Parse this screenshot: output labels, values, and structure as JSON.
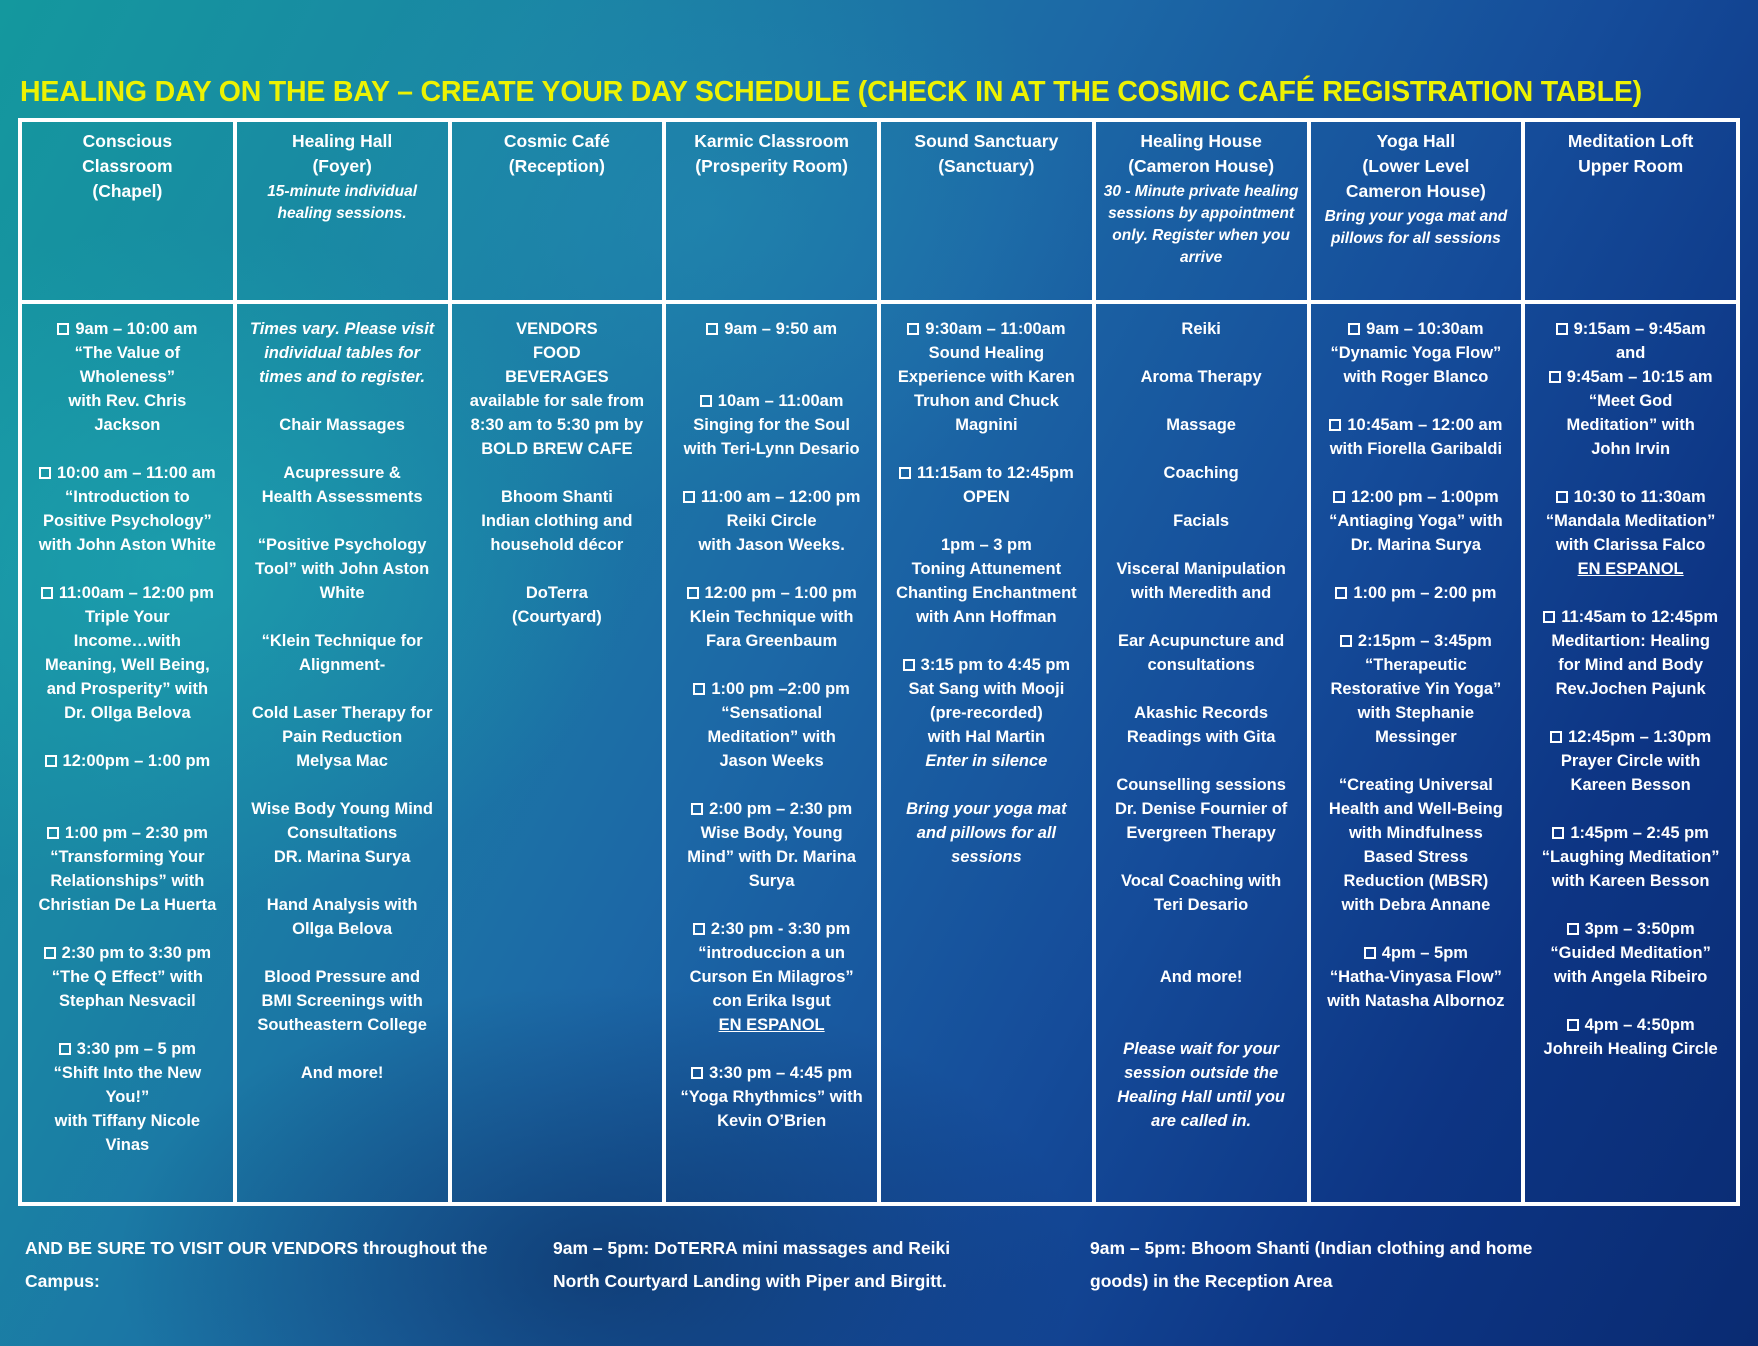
{
  "title": "HEALING DAY ON THE BAY – CREATE YOUR DAY SCHEDULE (CHECK IN AT THE COSMIC CAFÉ REGISTRATION TABLE)",
  "colors": {
    "title_yellow": "#edf202",
    "text": "#ffffff",
    "grid": "#ffffff",
    "bg_teal": "#14989e",
    "bg_navy": "#0a2b72"
  },
  "checkbox_glyph": "empty-square",
  "columns": [
    {
      "header": [
        "Conscious",
        "Classroom",
        "(Chapel)"
      ],
      "note": null,
      "events": [
        {
          "lines": [
            {
              "cb": true,
              "t": "9am – 10:00 am"
            },
            {
              "t": "“The Value of"
            },
            {
              "t": "Wholeness”"
            },
            {
              "t": "with Rev. Chris"
            },
            {
              "t": "Jackson"
            }
          ]
        },
        {
          "lines": [
            {
              "cb": true,
              "t": "10:00 am – 11:00 am"
            },
            {
              "t": "“Introduction to"
            },
            {
              "t": "Positive Psychology”"
            },
            {
              "t": "with John Aston White"
            }
          ]
        },
        {
          "lines": [
            {
              "cb": true,
              "t": "11:00am – 12:00 pm"
            },
            {
              "t": "Triple Your"
            },
            {
              "t": "Income…with"
            },
            {
              "t": "Meaning, Well Being,"
            },
            {
              "t": "and Prosperity” with"
            },
            {
              "t": "Dr. Ollga Belova"
            }
          ]
        },
        {
          "gap": 2,
          "lines": [
            {
              "cb": true,
              "t": "12:00pm – 1:00 pm"
            }
          ]
        },
        {
          "lines": [
            {
              "cb": true,
              "t": "1:00 pm – 2:30 pm"
            },
            {
              "t": "“Transforming Your"
            },
            {
              "t": "Relationships” with"
            },
            {
              "t": "Christian De La Huerta"
            }
          ]
        },
        {
          "lines": [
            {
              "cb": true,
              "t": "2:30 pm to 3:30 pm"
            },
            {
              "t": "“The Q Effect” with"
            },
            {
              "t": "Stephan Nesvacil"
            }
          ]
        },
        {
          "lines": [
            {
              "cb": true,
              "t": "3:30 pm – 5 pm"
            },
            {
              "t": "“Shift Into the New"
            },
            {
              "t": "You!”"
            },
            {
              "t": "with Tiffany Nicole"
            },
            {
              "t": "Vinas"
            }
          ]
        }
      ]
    },
    {
      "header": [
        "Healing Hall",
        "(Foyer)"
      ],
      "note": "15-minute individual healing sessions.",
      "events": [
        {
          "lines": [
            {
              "t": "Times vary. Please visit",
              "em": true
            },
            {
              "t": "individual tables for",
              "em": true
            },
            {
              "t": "times and to register.",
              "em": true
            }
          ]
        },
        {
          "lines": [
            {
              "t": "Chair Massages"
            }
          ]
        },
        {
          "lines": [
            {
              "t": "Acupressure &"
            },
            {
              "t": "Health Assessments"
            }
          ]
        },
        {
          "lines": [
            {
              "t": "“Positive Psychology"
            },
            {
              "t": "Tool” with John Aston"
            },
            {
              "t": "White"
            }
          ]
        },
        {
          "lines": [
            {
              "t": "“Klein Technique for"
            },
            {
              "t": "Alignment-"
            }
          ]
        },
        {
          "lines": [
            {
              "t": "Cold Laser Therapy for"
            },
            {
              "t": "Pain Reduction"
            },
            {
              "t": "Melysa Mac"
            }
          ]
        },
        {
          "lines": [
            {
              "t": "Wise Body Young Mind"
            },
            {
              "t": "Consultations"
            },
            {
              "t": "DR. Marina Surya"
            }
          ]
        },
        {
          "lines": [
            {
              "t": "Hand Analysis with"
            },
            {
              "t": "Ollga Belova"
            }
          ]
        },
        {
          "lines": [
            {
              "t": "Blood Pressure and"
            },
            {
              "t": "BMI Screenings with"
            },
            {
              "t": "Southeastern College"
            }
          ]
        },
        {
          "lines": [
            {
              "t": "And more!"
            }
          ]
        }
      ]
    },
    {
      "header": [
        "Cosmic Café",
        "(Reception)"
      ],
      "note": null,
      "events": [
        {
          "lines": [
            {
              "t": "VENDORS"
            },
            {
              "t": "FOOD"
            },
            {
              "t": "BEVERAGES"
            },
            {
              "t": "available for sale from"
            },
            {
              "t": "8:30 am to 5:30 pm by"
            },
            {
              "t": "BOLD BREW CAFE"
            }
          ]
        },
        {
          "lines": [
            {
              "t": "Bhoom Shanti"
            },
            {
              "t": "Indian clothing and"
            },
            {
              "t": "household décor"
            }
          ]
        },
        {
          "lines": [
            {
              "t": "DoTerra"
            },
            {
              "t": "(Courtyard)"
            }
          ]
        }
      ]
    },
    {
      "header": [
        "Karmic Classroom",
        "(Prosperity Room)"
      ],
      "note": null,
      "events": [
        {
          "gap": 2,
          "lines": [
            {
              "cb": true,
              "t": "9am – 9:50 am"
            }
          ]
        },
        {
          "lines": [
            {
              "cb": true,
              "t": "10am – 11:00am"
            },
            {
              "t": "Singing for the Soul"
            },
            {
              "t": "with Teri-Lynn Desario"
            }
          ]
        },
        {
          "lines": [
            {
              "cb": true,
              "t": "11:00 am – 12:00 pm"
            },
            {
              "t": "Reiki Circle"
            },
            {
              "t": "with Jason Weeks."
            }
          ]
        },
        {
          "lines": [
            {
              "cb": true,
              "t": "12:00 pm – 1:00 pm"
            },
            {
              "t": "Klein Technique with"
            },
            {
              "t": "Fara Greenbaum"
            }
          ]
        },
        {
          "lines": [
            {
              "cb": true,
              "t": "1:00 pm –2:00 pm"
            },
            {
              "t": "“Sensational"
            },
            {
              "t": "Meditation” with"
            },
            {
              "t": "Jason Weeks"
            }
          ]
        },
        {
          "lines": [
            {
              "cb": true,
              "t": "2:00 pm – 2:30 pm"
            },
            {
              "t": "Wise Body, Young"
            },
            {
              "t": "Mind” with Dr. Marina"
            },
            {
              "t": "Surya"
            }
          ]
        },
        {
          "lines": [
            {
              "cb": true,
              "t": "2:30 pm - 3:30 pm"
            },
            {
              "t": "“introduccion a un"
            },
            {
              "t": "Curson En Milagros”"
            },
            {
              "t": "con Erika Isgut"
            },
            {
              "t": "EN ESPANOL",
              "u": true
            }
          ]
        },
        {
          "lines": [
            {
              "cb": true,
              "t": "3:30 pm – 4:45 pm"
            },
            {
              "t": "“Yoga Rhythmics” with"
            },
            {
              "t": "Kevin O’Brien"
            }
          ]
        }
      ]
    },
    {
      "header": [
        "Sound Sanctuary",
        "(Sanctuary)"
      ],
      "note": null,
      "events": [
        {
          "lines": [
            {
              "cb": true,
              "t": "9:30am – 11:00am"
            },
            {
              "t": "Sound Healing"
            },
            {
              "t": "Experience with Karen"
            },
            {
              "t": "Truhon and Chuck"
            },
            {
              "t": "Magnini"
            }
          ]
        },
        {
          "lines": [
            {
              "cb": true,
              "t": "11:15am to 12:45pm"
            },
            {
              "t": "OPEN"
            }
          ]
        },
        {
          "lines": [
            {
              "t": "1pm – 3 pm"
            },
            {
              "t": "Toning Attunement"
            },
            {
              "t": "Chanting Enchantment"
            },
            {
              "t": "with Ann Hoffman"
            }
          ]
        },
        {
          "lines": [
            {
              "cb": true,
              "t": "3:15 pm to 4:45 pm"
            },
            {
              "t": "Sat Sang with Mooji"
            },
            {
              "t": "(pre-recorded)"
            },
            {
              "t": "with Hal Martin"
            },
            {
              "t": "Enter in silence",
              "em": true
            }
          ]
        },
        {
          "lines": [
            {
              "t": "Bring your yoga mat",
              "em": true
            },
            {
              "t": "and pillows for all",
              "em": true
            },
            {
              "t": "sessions",
              "em": true
            }
          ]
        }
      ]
    },
    {
      "header": [
        "Healing House",
        "(Cameron House)"
      ],
      "note": "30 - Minute private healing sessions by appointment only. Register when you arrive",
      "events": [
        {
          "lines": [
            {
              "t": "Reiki"
            }
          ]
        },
        {
          "lines": [
            {
              "t": "Aroma Therapy"
            }
          ]
        },
        {
          "lines": [
            {
              "t": "Massage"
            }
          ]
        },
        {
          "lines": [
            {
              "t": "Coaching"
            }
          ]
        },
        {
          "lines": [
            {
              "t": "Facials"
            }
          ]
        },
        {
          "lines": [
            {
              "t": "Visceral Manipulation"
            },
            {
              "t": "with Meredith and"
            }
          ]
        },
        {
          "lines": [
            {
              "t": "Ear Acupuncture and"
            },
            {
              "t": "consultations"
            }
          ]
        },
        {
          "lines": [
            {
              "t": "Akashic Records"
            },
            {
              "t": "Readings with Gita"
            }
          ]
        },
        {
          "lines": [
            {
              "t": "Counselling sessions"
            },
            {
              "t": "Dr. Denise Fournier of"
            },
            {
              "t": "Evergreen Therapy"
            }
          ]
        },
        {
          "gap": 2,
          "lines": [
            {
              "t": "Vocal Coaching with"
            },
            {
              "t": "Teri Desario"
            }
          ]
        },
        {
          "gap": 2,
          "lines": [
            {
              "t": "And more!"
            }
          ]
        },
        {
          "lines": [
            {
              "t": "Please wait for your",
              "em": true
            },
            {
              "t": "session outside the",
              "em": true
            },
            {
              "t": "Healing Hall until you",
              "em": true
            },
            {
              "t": "are called in.",
              "em": true
            }
          ]
        }
      ]
    },
    {
      "header": [
        "Yoga Hall",
        "(Lower Level",
        "Cameron House)"
      ],
      "note": "Bring your yoga mat and pillows for all sessions",
      "events": [
        {
          "lines": [
            {
              "cb": true,
              "t": "9am – 10:30am"
            },
            {
              "t": "“Dynamic Yoga Flow”"
            },
            {
              "t": "with Roger Blanco"
            }
          ]
        },
        {
          "lines": [
            {
              "cb": true,
              "t": "10:45am – 12:00 am"
            },
            {
              "t": "with Fiorella Garibaldi"
            }
          ]
        },
        {
          "lines": [
            {
              "cb": true,
              "t": "12:00 pm – 1:00pm"
            },
            {
              "t": "“Antiaging Yoga” with"
            },
            {
              "t": "Dr. Marina Surya"
            }
          ]
        },
        {
          "lines": [
            {
              "cb": true,
              "t": "1:00 pm – 2:00 pm"
            }
          ]
        },
        {
          "lines": [
            {
              "cb": true,
              "t": "2:15pm – 3:45pm"
            },
            {
              "t": "“Therapeutic"
            },
            {
              "t": "Restorative Yin Yoga”"
            },
            {
              "t": "with Stephanie"
            },
            {
              "t": "Messinger"
            }
          ]
        },
        {
          "lines": [
            {
              "t": "“Creating Universal"
            },
            {
              "t": "Health and Well-Being"
            },
            {
              "t": "with Mindfulness"
            },
            {
              "t": "Based Stress"
            },
            {
              "t": "Reduction (MBSR)"
            },
            {
              "t": "with Debra Annane"
            }
          ]
        },
        {
          "lines": [
            {
              "cb": true,
              "t": "4pm – 5pm"
            },
            {
              "t": "“Hatha-Vinyasa Flow”"
            },
            {
              "t": "with Natasha Albornoz"
            }
          ]
        }
      ]
    },
    {
      "header": [
        "Meditation Loft",
        "Upper Room"
      ],
      "note": null,
      "events": [
        {
          "lines": [
            {
              "cb": true,
              "t": "9:15am – 9:45am"
            },
            {
              "t": "and"
            },
            {
              "cb": true,
              "t": "9:45am – 10:15 am"
            },
            {
              "t": "“Meet God"
            },
            {
              "t": "Meditation” with"
            },
            {
              "t": "John Irvin"
            }
          ]
        },
        {
          "lines": [
            {
              "cb": true,
              "t": "10:30 to 11:30am"
            },
            {
              "t": "“Mandala Meditation”"
            },
            {
              "t": "with Clarissa Falco"
            },
            {
              "t": "EN ESPANOL",
              "u": true
            }
          ]
        },
        {
          "lines": [
            {
              "cb": true,
              "t": "11:45am to 12:45pm"
            },
            {
              "t": "Meditartion: Healing"
            },
            {
              "t": "for Mind and Body"
            },
            {
              "t": "Rev.Jochen Pajunk"
            }
          ]
        },
        {
          "lines": [
            {
              "cb": true,
              "t": "12:45pm – 1:30pm"
            },
            {
              "t": "Prayer Circle with"
            },
            {
              "t": "Kareen Besson"
            }
          ]
        },
        {
          "lines": [
            {
              "cb": true,
              "t": "1:45pm – 2:45 pm"
            },
            {
              "t": "“Laughing Meditation”"
            },
            {
              "t": "with Kareen Besson"
            }
          ]
        },
        {
          "lines": [
            {
              "cb": true,
              "t": "3pm – 3:50pm"
            },
            {
              "t": "“Guided Meditation”"
            },
            {
              "t": "with Angela Ribeiro"
            }
          ]
        },
        {
          "lines": [
            {
              "cb": true,
              "t": "4pm – 4:50pm"
            },
            {
              "t": "Johreih Healing Circle"
            }
          ]
        }
      ]
    }
  ],
  "footer": {
    "vendors": "AND BE SURE TO VISIT OUR VENDORS throughout the Campus:",
    "doterra": "9am – 5pm: DoTERRA mini massages and Reiki North Courtyard Landing with Piper and Birgitt.",
    "bhoom": "9am – 5pm: Bhoom Shanti (Indian clothing and home goods) in the Reception Area"
  }
}
